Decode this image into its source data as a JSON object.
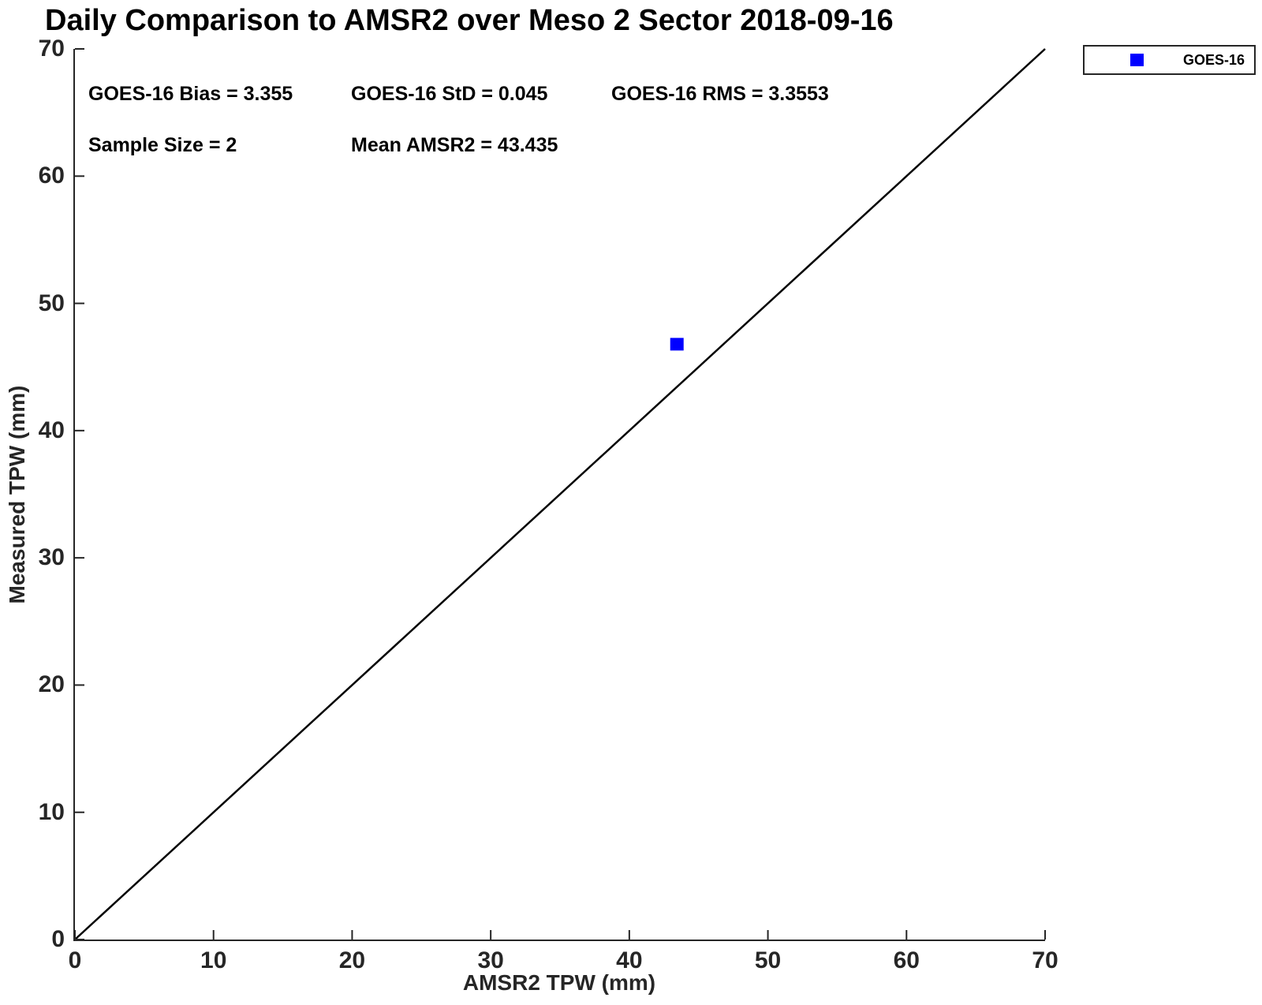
{
  "stats": {
    "bias_label": "GOES-16 Bias = 3.355",
    "std_label": "GOES-16 StD = 0.045",
    "rms_label": "GOES-16 RMS = 3.3553",
    "sample_size_label": "Sample Size = 2",
    "mean_amsr2_label": "Mean AMSR2 = 43.435",
    "values": {
      "bias": 3.355,
      "std": 0.045,
      "rms": 3.3553,
      "sample_size": 2,
      "mean_amsr2": 43.435
    }
  },
  "legend": {
    "position": "top-right-outside",
    "entries": [
      {
        "label": "GOES-16",
        "marker": "square",
        "color": "#0000ff"
      }
    ]
  },
  "colors": {
    "marker": "#0000ff",
    "axis": "#262626",
    "reference_line": "#000000",
    "text": "#000000",
    "background": "#ffffff"
  },
  "chart_data": {
    "type": "scatter",
    "title": "Daily Comparison to AMSR2 over Meso 2 Sector 2018-09-16",
    "xlabel": "AMSR2 TPW (mm)",
    "ylabel": "Measured TPW (mm)",
    "xlim": [
      0,
      70
    ],
    "ylim": [
      0,
      70
    ],
    "xticks": [
      0,
      10,
      20,
      30,
      40,
      50,
      60,
      70
    ],
    "yticks": [
      0,
      10,
      20,
      30,
      40,
      50,
      60,
      70
    ],
    "grid": false,
    "legend_position": "top-right-outside",
    "series": [
      {
        "name": "GOES-16",
        "marker": "square",
        "color": "#0000ff",
        "points": [
          [
            43.435,
            46.79
          ]
        ]
      }
    ],
    "reference_line": {
      "name": "identity-line",
      "from": [
        0,
        0
      ],
      "to": [
        70,
        70
      ],
      "color": "#000000"
    },
    "annotations": [
      "GOES-16 Bias = 3.355",
      "GOES-16 StD = 0.045",
      "GOES-16 RMS = 3.3553",
      "Sample Size = 2",
      "Mean AMSR2 = 43.435"
    ]
  }
}
